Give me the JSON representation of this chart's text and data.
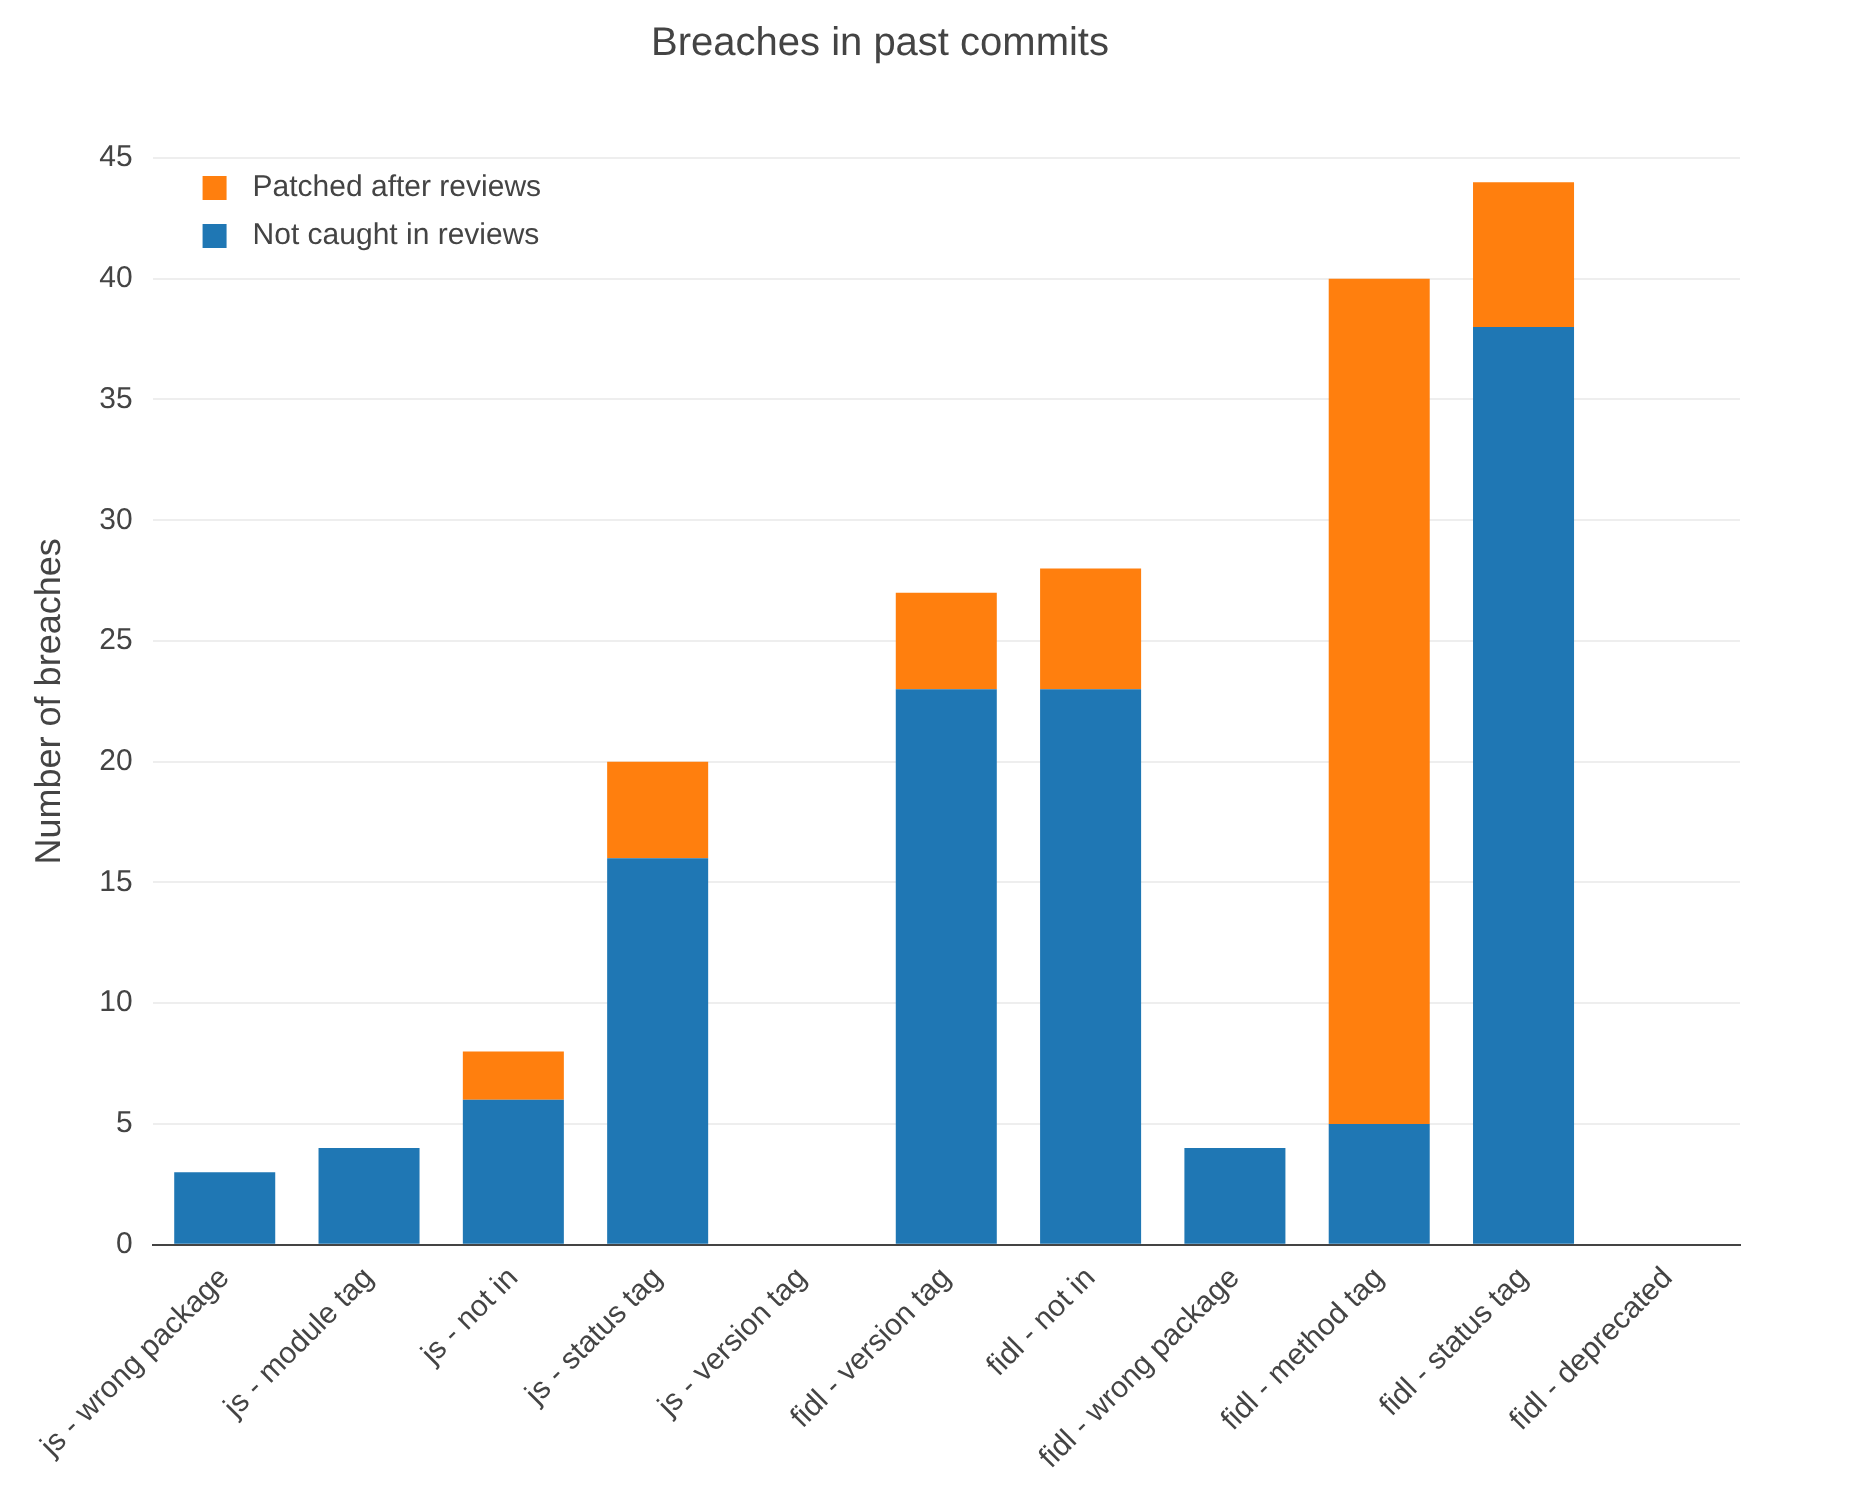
{
  "chart_data": {
    "type": "bar",
    "title": "Breaches in past commits",
    "ylabel": "Number of breaches",
    "categories": [
      "js - wrong package",
      "js - module tag",
      "js - not in",
      "js - status tag",
      "js - version tag",
      "fidl - version tag",
      "fidl - not in",
      "fidl - wrong package",
      "fidl - method tag",
      "fidl - status tag",
      "fidl - deprecated"
    ],
    "stacked": true,
    "series": [
      {
        "name": "Not caught in reviews",
        "color": "#1f77b4",
        "values": [
          3,
          4,
          6,
          16,
          0,
          23,
          23,
          4,
          5,
          38,
          0
        ]
      },
      {
        "name": "Patched after reviews",
        "color": "#ff7f0e",
        "values": [
          0,
          0,
          2,
          4,
          0,
          4,
          5,
          0,
          35,
          6,
          0
        ]
      }
    ],
    "ylim": [
      0,
      45
    ],
    "yticks": [
      0,
      5,
      10,
      15,
      20,
      25,
      30,
      35,
      40,
      45
    ],
    "grid": "y",
    "legend": "top left"
  }
}
